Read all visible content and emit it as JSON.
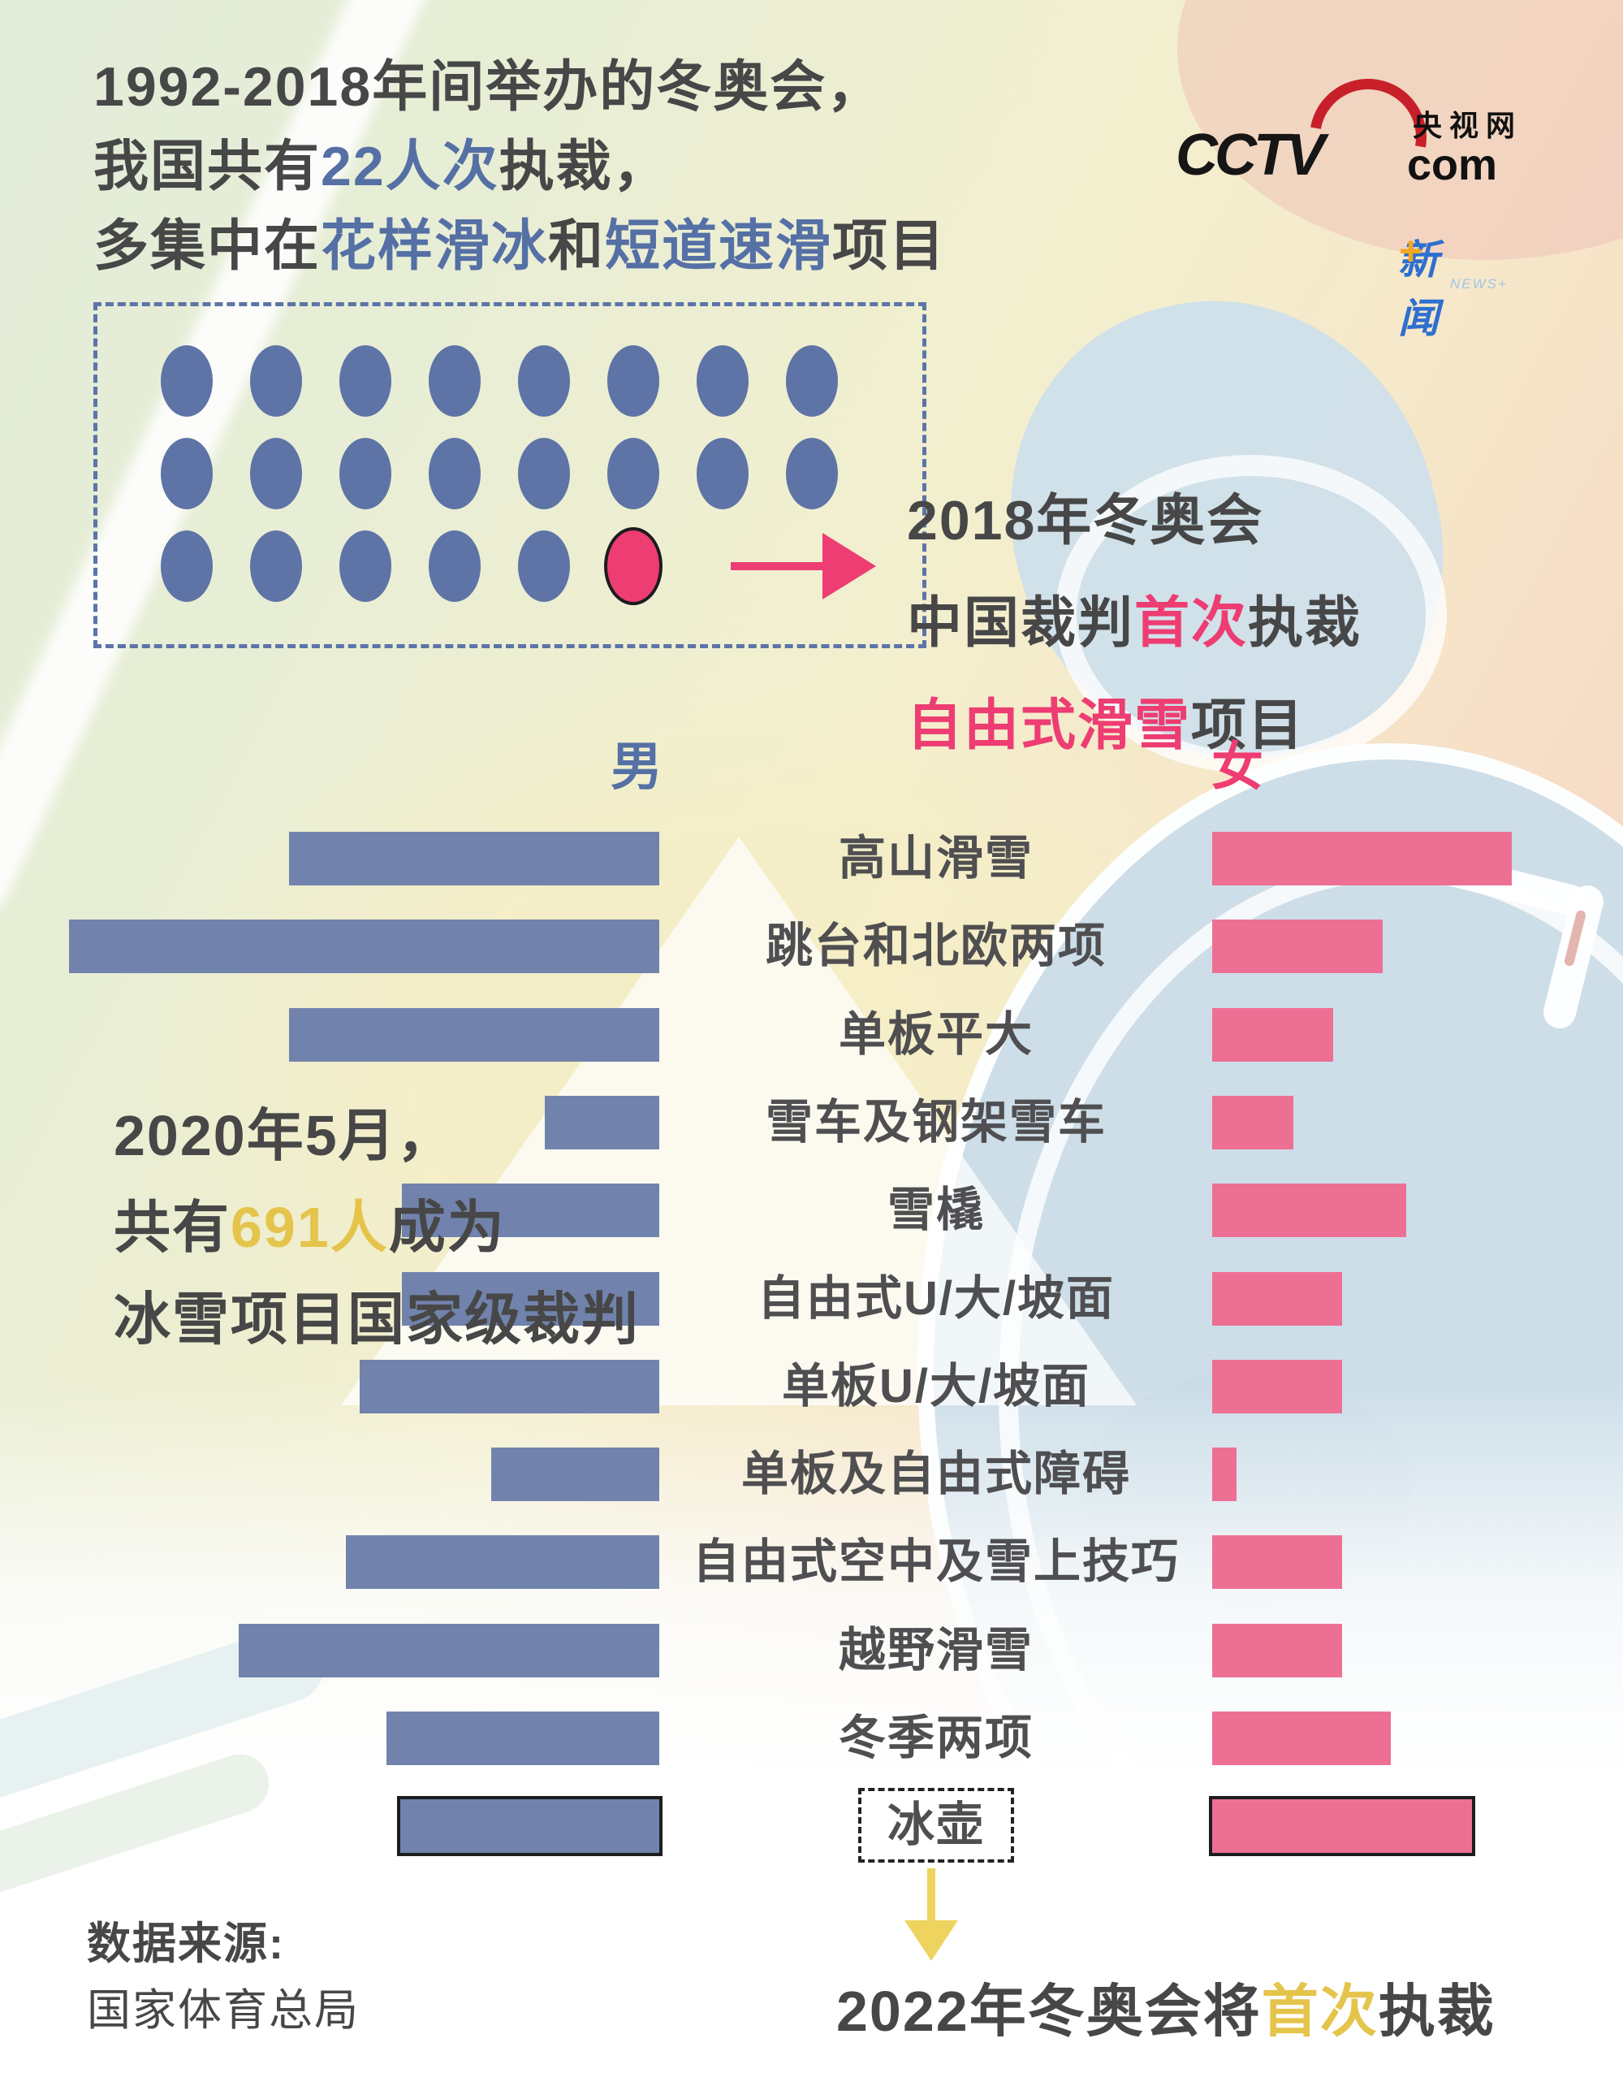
{
  "title": {
    "l1": "1992-2018年间举办的冬奥会，",
    "l2a": "我国共有",
    "l2b": "22人次",
    "l2c": "执裁，",
    "l3a": "多集中在",
    "l3b": "花样滑冰",
    "l3c": "和",
    "l3d": "短道速滑",
    "l3e": "项目"
  },
  "logo": {
    "cctv": "CCTV",
    "cn": "央视网",
    "com": "com",
    "news": "新闻",
    "news_plus": "+",
    "news_en": "NEWS+"
  },
  "dots": {
    "total": 22,
    "blue_count": 21,
    "pink_count": 1,
    "rows": [
      8,
      8,
      6
    ],
    "pink_row": 2,
    "pink_index": 5,
    "blue_color": "#5e74a6",
    "pink_color": "#ed3d72"
  },
  "callout2018": {
    "l1": "2018年冬奥会",
    "l2a": "中国裁判",
    "l2b": "首次",
    "l2c": "执裁",
    "l3a": "自由式滑雪",
    "l3b": "项目"
  },
  "note2020": {
    "l1": "2020年5月，",
    "l2a": "共有",
    "l2b": "691人",
    "l2c": "成为",
    "l3": "冰雪项目国家级裁判"
  },
  "gender_headers": {
    "male": "男",
    "female": "女"
  },
  "chart_data": {
    "type": "bar",
    "orientation": "horizontal-diverging",
    "title": "冰雪项目国家级裁判（男 / 女）",
    "categories": [
      "高山滑雪",
      "跳台和北欧两项",
      "单板平大",
      "雪车及钢架雪车",
      "雪橇",
      "自由式U/大/坡面",
      "单板U/大/坡面",
      "单板及自由式障碍",
      "自由式空中及雪上技巧",
      "越野滑雪",
      "冬季两项",
      "冰壶"
    ],
    "series": [
      {
        "name": "男",
        "color": "#7183ac",
        "values": [
          456,
          727,
          456,
          141,
          317,
          317,
          369,
          207,
          386,
          518,
          336,
          319
        ]
      },
      {
        "name": "女",
        "color": "#ed7094",
        "values": [
          369,
          210,
          149,
          100,
          239,
          160,
          160,
          30,
          160,
          160,
          220,
          320
        ]
      }
    ],
    "value_unit": "relative bar length in source pixels (no numeric axis shown)",
    "highlight_category": "冰壶",
    "legend_position": "top (男 left in blue, 女 right in pink)",
    "grid": false
  },
  "footer": {
    "source_label": "数据来源:",
    "source_value": "国家体育总局",
    "headline_a": "2022年冬奥会将",
    "headline_b": "首次",
    "headline_c": "执裁"
  },
  "colors": {
    "dark_text": "#474748",
    "blue_text": "#5570a5",
    "pink_text": "#ed3d72",
    "yellow_text": "#e5c44c",
    "male_bar": "#7183ac",
    "female_bar": "#ed7094",
    "dot_blue": "#5e74a6",
    "arrow_yellow": "#eed45f",
    "label_gray": "#4f4f51"
  }
}
